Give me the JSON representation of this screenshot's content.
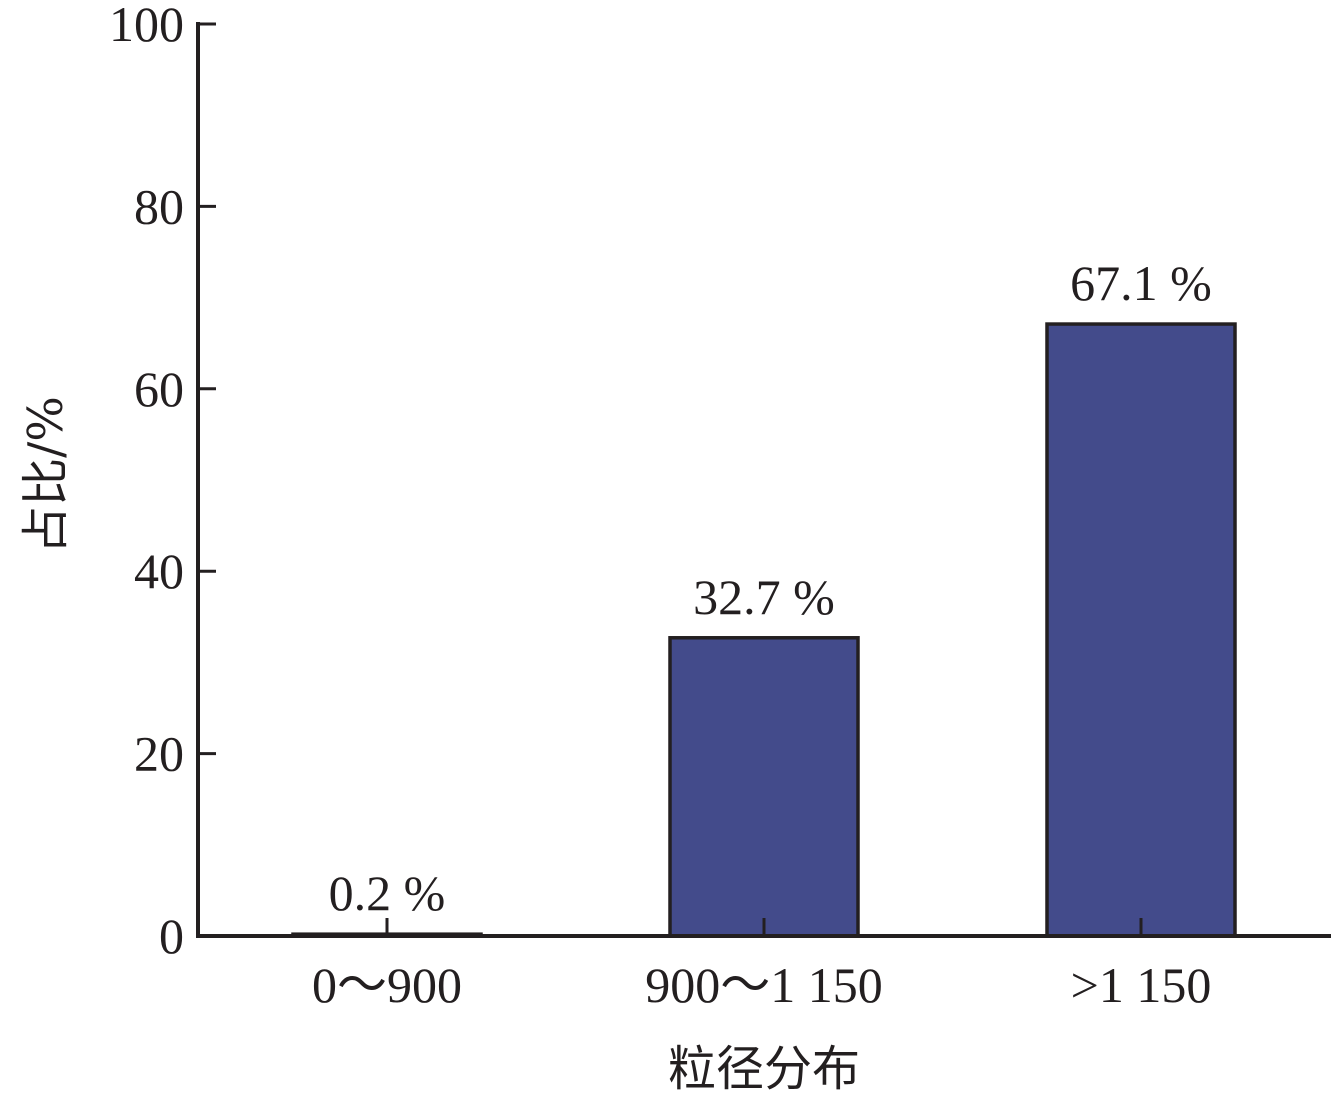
{
  "chart_data": {
    "type": "bar",
    "categories": [
      "0～900",
      "900～1 150",
      ">1 150"
    ],
    "values": [
      0.2,
      32.7,
      67.1
    ],
    "data_labels": [
      "0.2 %",
      "32.7 %",
      "67.1 %"
    ],
    "title": "",
    "xlabel": "粒径分布",
    "ylabel": "占比/%",
    "ylim": [
      0,
      100
    ],
    "yticks": [
      0,
      20,
      40,
      60,
      80,
      100
    ],
    "grid": false,
    "legend": "none",
    "colors": {
      "bar_fill": "#434b8b",
      "bar_stroke": "#231f20",
      "axis": "#231f20",
      "text": "#231f20"
    }
  }
}
